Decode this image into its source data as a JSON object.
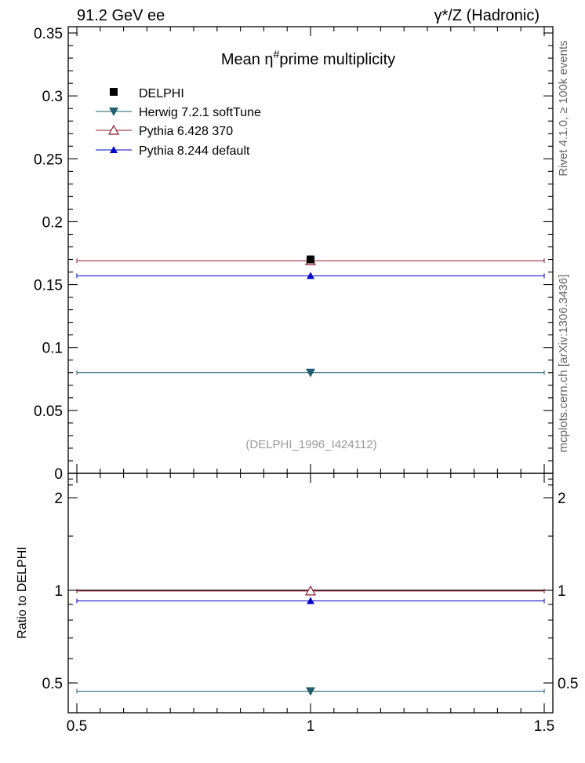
{
  "header": {
    "left_label": "91.2 GeV ee",
    "right_label": "γ*/Z (Hadronic)"
  },
  "side": {
    "rivet_label": "Rivet 4.1.0, ≥ 100k events",
    "mcplots_label": "mcplots.cern.ch [arXiv:1306.3436]"
  },
  "colors": {
    "delphi": "#000000",
    "herwig": "#1f5f6e",
    "pythia6": "#8b1a2b",
    "pythia8": "#0000cc",
    "watermark": "#9a9a9a"
  },
  "chart_data": [
    {
      "type": "scatter",
      "title_main": "Mean η",
      "title_sup": "#",
      "title_rest": "prime multiplicity",
      "watermark": "(DELPHI_1996_I424112)",
      "xlabel": "",
      "ylabel": "",
      "xlim": [
        0.5,
        1.5
      ],
      "ylim": [
        0,
        0.355
      ],
      "yticks": [
        0,
        0.05,
        0.1,
        0.15,
        0.2,
        0.25,
        0.3,
        0.35
      ],
      "ytick_labels": [
        "0",
        "0.05",
        "0.1",
        "0.15",
        "0.2",
        "0.25",
        "0.3",
        "0.35"
      ],
      "legend_position": "top-left",
      "series": [
        {
          "name": "DELPHI",
          "x": 1,
          "y": 0.17,
          "marker": "square",
          "color": "#000000"
        },
        {
          "name": "Herwig 7.2.1 softTune",
          "x": 1,
          "y": 0.08,
          "marker": "triangle-down",
          "color": "#1f5f6e"
        },
        {
          "name": "Pythia 6.428 370",
          "x": 1,
          "y": 0.169,
          "marker": "triangle-up-open",
          "color": "#8b1a2b"
        },
        {
          "name": "Pythia 8.244 default",
          "x": 1,
          "y": 0.157,
          "marker": "triangle-up",
          "color": "#0000cc"
        }
      ]
    },
    {
      "type": "scatter",
      "ylabel": "Ratio to DELPHI",
      "xlim": [
        0.5,
        1.5
      ],
      "ylim": [
        0.4,
        2.4
      ],
      "log_y": true,
      "yticks": [
        0.5,
        1,
        2
      ],
      "ytick_labels": [
        "0.5",
        "1",
        "2"
      ],
      "xticks": [
        0.5,
        1,
        1.5
      ],
      "xtick_labels": [
        "0.5",
        "1",
        "1.5"
      ],
      "reference": 1,
      "series": [
        {
          "name": "Herwig 7.2.1 softTune",
          "x": 1,
          "y": 0.47,
          "marker": "triangle-down",
          "color": "#1f5f6e"
        },
        {
          "name": "Pythia 6.428 370",
          "x": 1,
          "y": 0.995,
          "marker": "triangle-up-open",
          "color": "#8b1a2b"
        },
        {
          "name": "Pythia 8.244 default",
          "x": 1,
          "y": 0.924,
          "marker": "triangle-up",
          "color": "#0000cc"
        }
      ]
    }
  ]
}
